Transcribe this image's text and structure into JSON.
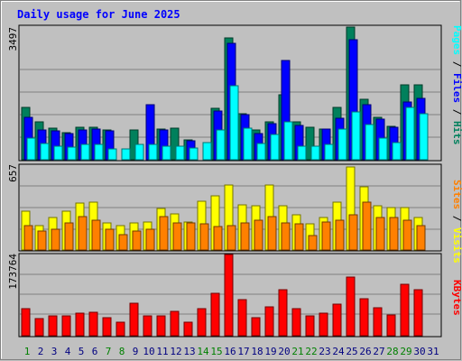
{
  "chart_data": [
    {
      "type": "bar",
      "title": "Daily usage for June 2025",
      "categories": [
        "1",
        "2",
        "3",
        "4",
        "5",
        "6",
        "7",
        "8",
        "9",
        "10",
        "11",
        "12",
        "13",
        "14",
        "15",
        "16",
        "17",
        "18",
        "19",
        "20",
        "21",
        "22",
        "23",
        "24",
        "25",
        "26",
        "27",
        "28",
        "29",
        "30",
        "31"
      ],
      "weekend_days": [
        "1",
        "7",
        "8",
        "14",
        "15",
        "21",
        "22",
        "28",
        "29"
      ],
      "scale_label": "3497",
      "ymax": 3497,
      "series": [
        {
          "name": "Hits",
          "color": "#00805c",
          "values": [
            1370,
            1000,
            830,
            710,
            840,
            860,
            770,
            0,
            790,
            0,
            800,
            820,
            510,
            0,
            1340,
            3200,
            1210,
            770,
            990,
            1710,
            990,
            860,
            800,
            1360,
            3480,
            1580,
            1100,
            870,
            1950,
            1950,
            0
          ]
        },
        {
          "name": "Files",
          "color": "#0000ff",
          "values": [
            1100,
            780,
            760,
            680,
            790,
            800,
            760,
            0,
            0,
            1430,
            790,
            0,
            490,
            0,
            1280,
            3040,
            1180,
            680,
            940,
            2590,
            900,
            0,
            800,
            1090,
            3150,
            1440,
            1060,
            860,
            1520,
            1600,
            0
          ]
        },
        {
          "name": "Pages",
          "color": "#00ffff",
          "values": [
            560,
            420,
            360,
            340,
            390,
            400,
            280,
            280,
            390,
            400,
            360,
            360,
            300,
            460,
            790,
            1930,
            830,
            420,
            650,
            1000,
            360,
            360,
            390,
            800,
            1260,
            920,
            560,
            440,
            1380,
            1200,
            0
          ]
        }
      ]
    },
    {
      "type": "bar",
      "scale_label": "657",
      "ymax": 657,
      "series": [
        {
          "name": "Visits",
          "color": "#ffff00",
          "values": [
            300,
            190,
            250,
            300,
            360,
            370,
            210,
            190,
            210,
            220,
            320,
            280,
            220,
            380,
            420,
            500,
            350,
            340,
            500,
            340,
            270,
            200,
            250,
            370,
            640,
            490,
            340,
            330,
            330,
            250,
            0
          ]
        },
        {
          "name": "Sites",
          "color": "#ff8000",
          "values": [
            190,
            150,
            160,
            210,
            260,
            230,
            160,
            120,
            150,
            160,
            260,
            210,
            210,
            200,
            180,
            190,
            210,
            230,
            260,
            210,
            200,
            110,
            220,
            230,
            270,
            370,
            250,
            250,
            230,
            190,
            0
          ]
        }
      ]
    },
    {
      "type": "bar",
      "scale_label": "173764",
      "ymax": 173764,
      "series": [
        {
          "name": "KBytes",
          "color": "#ff0000",
          "values": [
            58000,
            37000,
            42000,
            42000,
            48000,
            50000,
            38000,
            28000,
            70000,
            43000,
            43000,
            53000,
            29000,
            58000,
            90000,
            173764,
            77000,
            38000,
            62000,
            99000,
            58000,
            43000,
            48000,
            68000,
            125000,
            80000,
            60000,
            45000,
            110000,
            99000,
            0
          ]
        }
      ]
    }
  ]
}
